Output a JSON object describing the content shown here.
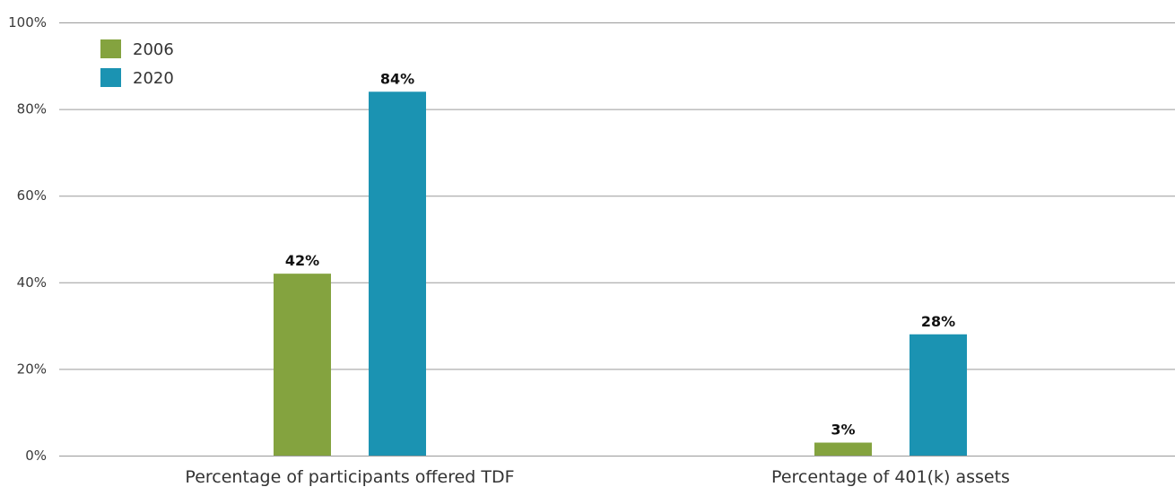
{
  "chart_data": {
    "type": "bar",
    "categories": [
      "Percentage of participants offered TDF",
      "Percentage of 401(k) assets"
    ],
    "series": [
      {
        "name": "2006",
        "values": [
          42,
          3
        ],
        "labels": [
          "42%",
          "3%"
        ],
        "color": "#84a33f"
      },
      {
        "name": "2020",
        "values": [
          84,
          28
        ],
        "labels": [
          "84%",
          "28%"
        ],
        "color": "#1b93b2"
      }
    ],
    "ylim": [
      0,
      100
    ],
    "yticks": [
      0,
      20,
      40,
      60,
      80,
      100
    ],
    "ytick_labels": [
      "0%",
      "20%",
      "40%",
      "60%",
      "80%",
      "100%"
    ],
    "grid": true,
    "legend_position": "top-left"
  }
}
